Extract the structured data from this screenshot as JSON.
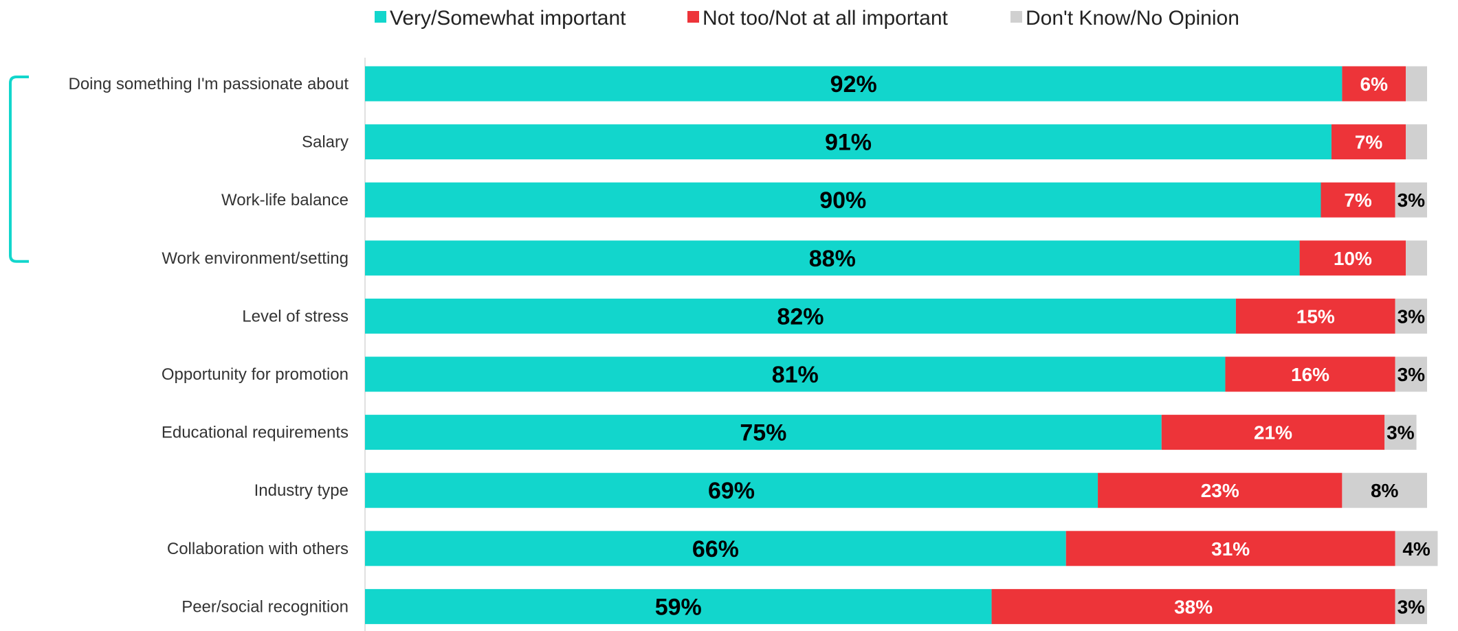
{
  "chart_data": {
    "type": "bar",
    "orientation": "horizontal",
    "stacked": true,
    "xlim": [
      0,
      100
    ],
    "grid": false,
    "legend_position": "top",
    "categories": [
      "Doing something I'm passionate about",
      "Salary",
      "Work-life balance",
      "Work environment/setting",
      "Level of stress",
      "Opportunity for promotion",
      "Educational requirements",
      "Industry type",
      "Collaboration with others",
      "Peer/social recognition"
    ],
    "series": [
      {
        "name": "Very/Somewhat important",
        "color": "#12d6cc",
        "label_color": "#000000",
        "values": [
          92,
          91,
          90,
          88,
          82,
          81,
          75,
          69,
          66,
          59
        ],
        "labels": [
          "92%",
          "91%",
          "90%",
          "88%",
          "82%",
          "81%",
          "75%",
          "69%",
          "66%",
          "59%"
        ]
      },
      {
        "name": "Not too/Not at all important",
        "color": "#ed3439",
        "label_color": "#ffffff",
        "values": [
          6,
          7,
          7,
          10,
          15,
          16,
          21,
          23,
          31,
          38
        ],
        "labels": [
          "6%",
          "7%",
          "7%",
          "10%",
          "15%",
          "16%",
          "21%",
          "23%",
          "31%",
          "38%"
        ]
      },
      {
        "name": "Don't Know/No Opinion",
        "color": "#d0d0d0",
        "label_color": "#000000",
        "values": [
          2,
          2,
          3,
          2,
          3,
          3,
          3,
          8,
          4,
          3
        ],
        "labels": [
          "",
          "",
          "3%",
          "",
          "3%",
          "3%",
          "3%",
          "8%",
          "4%",
          "3%"
        ]
      }
    ],
    "bracket": {
      "categories_from": 0,
      "categories_to": 3,
      "color": "#12d6cc"
    }
  }
}
